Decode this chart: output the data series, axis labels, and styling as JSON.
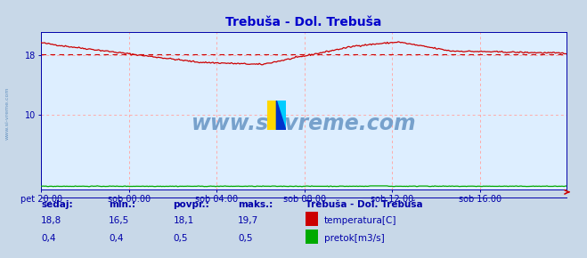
{
  "title": "Trebuša - Dol. Trebuša",
  "title_color": "#0000cc",
  "bg_color": "#c8d8e8",
  "plot_bg_color": "#ddeeff",
  "grid_color": "#ffaaaa",
  "temp_color": "#cc0000",
  "flow_color": "#00aa00",
  "avg_color": "#cc0000",
  "tick_color": "#0000aa",
  "xlabels": [
    "pet 20:00",
    "sob 00:00",
    "sob 04:00",
    "sob 08:00",
    "sob 12:00",
    "sob 16:00"
  ],
  "xtick_positions": [
    0,
    72,
    144,
    216,
    288,
    360
  ],
  "ylim": [
    0,
    21
  ],
  "yticks": [
    10,
    18
  ],
  "avg_temp": 18.1,
  "watermark": "www.si-vreme.com",
  "watermark_color": "#5588bb",
  "legend_title": "Trebuša - Dol. Trebuša",
  "legend_items": [
    {
      "label": "temperatura[C]",
      "color": "#cc0000"
    },
    {
      "label": "pretok[m3/s]",
      "color": "#00aa00"
    }
  ],
  "stats_headers": [
    "sedaj:",
    "min.:",
    "povpr.:",
    "maks.:"
  ],
  "stats_temp": [
    "18,8",
    "16,5",
    "18,1",
    "19,7"
  ],
  "stats_flow": [
    "0,4",
    "0,4",
    "0,5",
    "0,5"
  ],
  "n_points": 432
}
